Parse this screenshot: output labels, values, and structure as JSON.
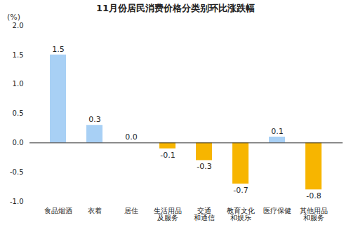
{
  "chart_data": {
    "type": "bar",
    "title": "11月份居民消费价格分类别环比涨跌幅",
    "y_label": "(%)",
    "categories": [
      "食品烟酒",
      "衣着",
      "居住",
      "生活用品\n及服务",
      "交通\n和通信",
      "教育文化\n和娱乐",
      "医疗保健",
      "其他用品\n和服务"
    ],
    "values": [
      1.5,
      0.3,
      0.0,
      -0.1,
      -0.3,
      -0.7,
      0.1,
      -0.8
    ],
    "value_labels": [
      "1.5",
      "0.3",
      "0.0",
      "-0.1",
      "-0.3",
      "-0.7",
      "0.1",
      "-0.8"
    ],
    "colors": [
      "#a8d0f5",
      "#a8d0f5",
      "#a8d0f5",
      "#f7b500",
      "#f7b500",
      "#f7b500",
      "#a8d0f5",
      "#f7b500"
    ],
    "ylim": [
      -1.0,
      2.0
    ],
    "yticks": [
      {
        "value": -1.0,
        "label": "-1.0"
      },
      {
        "value": -0.5,
        "label": "-0.5"
      },
      {
        "value": 0.0,
        "label": "0.0"
      },
      {
        "value": 0.5,
        "label": "0.5"
      },
      {
        "value": 1.0,
        "label": "1.0"
      },
      {
        "value": 1.5,
        "label": "1.5"
      },
      {
        "value": 2.0,
        "label": "2.0"
      }
    ],
    "data_labels": true
  }
}
